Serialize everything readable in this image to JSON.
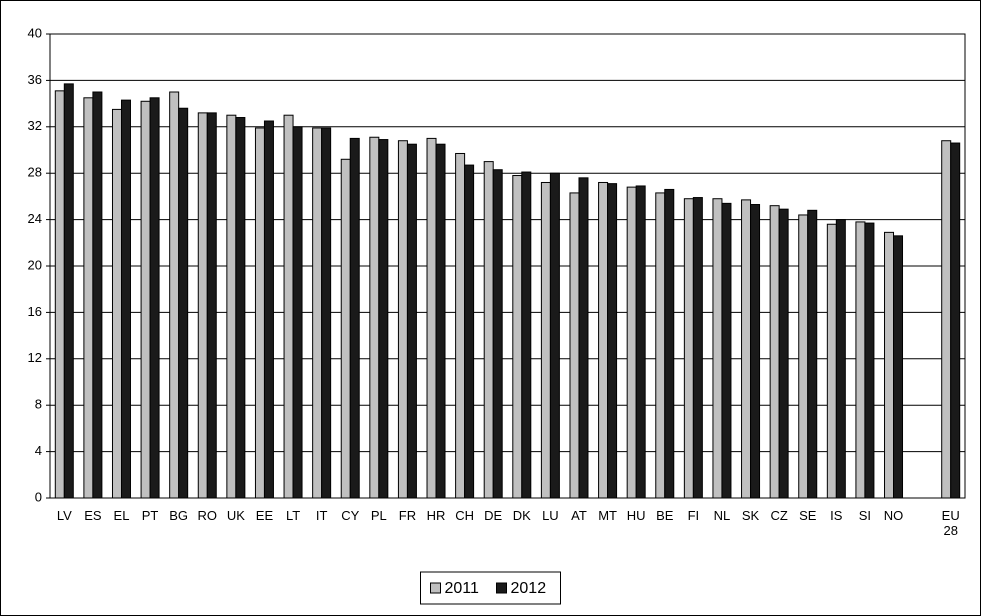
{
  "chart_data": {
    "type": "bar",
    "categories": [
      "LV",
      "ES",
      "EL",
      "PT",
      "BG",
      "RO",
      "UK",
      "EE",
      "LT",
      "IT",
      "CY",
      "PL",
      "FR",
      "HR",
      "CH",
      "DE",
      "DK",
      "LU",
      "AT",
      "MT",
      "HU",
      "BE",
      "FI",
      "NL",
      "SK",
      "CZ",
      "SE",
      "IS",
      "SI",
      "NO",
      null,
      "EU 28"
    ],
    "series": [
      {
        "name": "2011",
        "color": "#c0c0c0",
        "values": [
          35.1,
          34.5,
          33.5,
          34.2,
          35.0,
          33.2,
          33.0,
          31.9,
          33.0,
          31.9,
          29.2,
          31.1,
          30.8,
          31.0,
          29.7,
          29.0,
          27.8,
          27.2,
          26.3,
          27.2,
          26.8,
          26.3,
          25.8,
          25.8,
          25.7,
          25.2,
          24.4,
          23.6,
          23.8,
          22.9,
          null,
          30.8
        ]
      },
      {
        "name": "2012",
        "color": "#1a1a1a",
        "values": [
          35.7,
          35.0,
          34.3,
          34.5,
          33.6,
          33.2,
          32.8,
          32.5,
          32.0,
          31.9,
          31.0,
          30.9,
          30.5,
          30.5,
          28.7,
          28.3,
          28.1,
          28.0,
          27.6,
          27.1,
          26.9,
          26.6,
          25.9,
          25.4,
          25.3,
          24.9,
          24.8,
          24.0,
          23.7,
          22.6,
          null,
          30.6
        ]
      }
    ],
    "ylim": [
      0,
      40
    ],
    "yticks": [
      0,
      4,
      8,
      12,
      16,
      20,
      24,
      28,
      32,
      36,
      40
    ],
    "grid": true,
    "legend": "bottom"
  }
}
